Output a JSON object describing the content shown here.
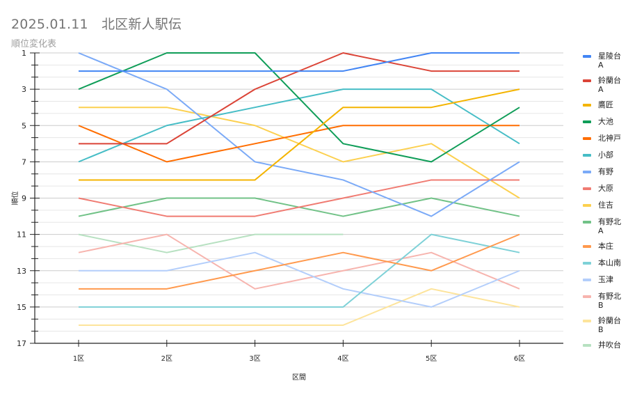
{
  "header": {
    "title": "2025.01.11　北区新人駅伝",
    "subtitle": "順位変化表"
  },
  "chart_data": {
    "type": "line",
    "title": "2025.01.11　北区新人駅伝",
    "subtitle": "順位変化表",
    "xlabel": "区間",
    "ylabel": "順位",
    "categories": [
      "1区",
      "2区",
      "3区",
      "4区",
      "5区",
      "6区"
    ],
    "ylim": [
      1,
      17
    ],
    "y_inverted": true,
    "y_ticks": [
      1,
      3,
      5,
      7,
      9,
      11,
      13,
      15,
      17
    ],
    "grid": true,
    "legend_position": "right",
    "series": [
      {
        "name": "星陵台A",
        "color": "#4285f4",
        "values": [
          2,
          2,
          2,
          2,
          1,
          1
        ]
      },
      {
        "name": "鈴蘭台A",
        "color": "#db4437",
        "values": [
          6,
          6,
          3,
          1,
          2,
          2
        ]
      },
      {
        "name": "鷹匠",
        "color": "#f4b400",
        "values": [
          8,
          8,
          8,
          4,
          4,
          3
        ]
      },
      {
        "name": "大池",
        "color": "#0f9d58",
        "values": [
          3,
          1,
          1,
          6,
          7,
          4
        ]
      },
      {
        "name": "北神戸",
        "color": "#ff6d00",
        "values": [
          5,
          7,
          6,
          5,
          5,
          5
        ]
      },
      {
        "name": "小部",
        "color": "#46bdc6",
        "values": [
          7,
          5,
          4,
          3,
          3,
          6
        ]
      },
      {
        "name": "有野",
        "color": "#7baaf7",
        "values": [
          1,
          3,
          7,
          8,
          10,
          7
        ]
      },
      {
        "name": "大原",
        "color": "#f07b72",
        "values": [
          9,
          10,
          10,
          9,
          8,
          8
        ]
      },
      {
        "name": "住吉",
        "color": "#fcd04f",
        "values": [
          4,
          4,
          5,
          7,
          6,
          9
        ]
      },
      {
        "name": "有野北A",
        "color": "#71c287",
        "values": [
          10,
          9,
          9,
          10,
          9,
          10
        ]
      },
      {
        "name": "本庄",
        "color": "#ff994d",
        "values": [
          14,
          14,
          13,
          12,
          13,
          11
        ]
      },
      {
        "name": "本山南",
        "color": "#7ed1d7",
        "values": [
          15,
          15,
          15,
          15,
          11,
          12
        ]
      },
      {
        "name": "玉津",
        "color": "#b3cefb",
        "values": [
          13,
          13,
          12,
          14,
          15,
          13
        ]
      },
      {
        "name": "有野北B",
        "color": "#f7b4ae",
        "values": [
          12,
          11,
          14,
          13,
          12,
          14
        ]
      },
      {
        "name": "鈴蘭台B",
        "color": "#fde49b",
        "values": [
          16,
          16,
          16,
          16,
          14,
          15
        ]
      },
      {
        "name": "井吹台",
        "color": "#b7e1c1",
        "values": [
          11,
          12,
          11,
          11,
          null,
          null
        ]
      }
    ]
  }
}
